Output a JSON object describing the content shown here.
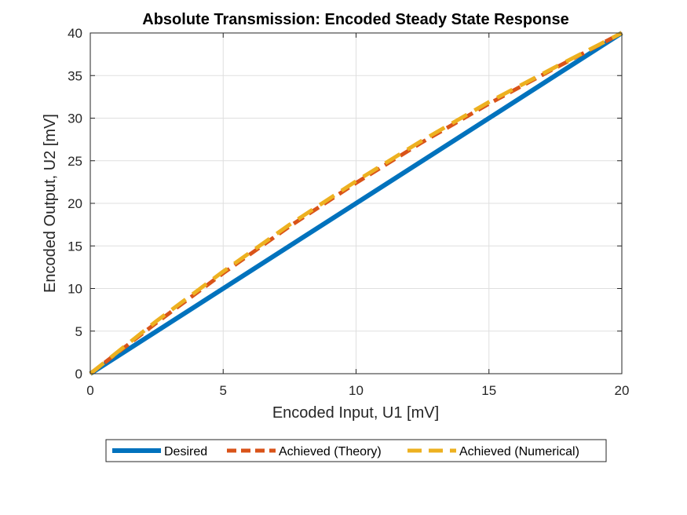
{
  "chart_data": {
    "type": "line",
    "title": "Absolute Transmission: Encoded Steady State Response",
    "xlabel": "Encoded Input, U1 [mV]",
    "ylabel": "Encoded Output, U2 [mV]",
    "xlim": [
      0,
      20
    ],
    "ylim": [
      0,
      40
    ],
    "xticks": [
      0,
      5,
      10,
      15,
      20
    ],
    "yticks": [
      0,
      5,
      10,
      15,
      20,
      25,
      30,
      35,
      40
    ],
    "grid": true,
    "legend_position": "bottom-outside",
    "series": [
      {
        "name": "Desired",
        "color": "#0072BD",
        "style": "solid",
        "x": [
          0,
          5,
          10,
          15,
          20
        ],
        "y": [
          0,
          10,
          20,
          30,
          40
        ]
      },
      {
        "name": "Achieved (Theory)",
        "color": "#D95319",
        "style": "dashed",
        "x": [
          0,
          2.5,
          5,
          7.5,
          10,
          12.5,
          15,
          17.5,
          20
        ],
        "y": [
          0,
          6.0,
          11.8,
          17.3,
          22.4,
          27.2,
          31.7,
          35.9,
          40
        ]
      },
      {
        "name": "Achieved (Numerical)",
        "color": "#EDB120",
        "style": "dashed",
        "x": [
          0,
          2.5,
          5,
          7.5,
          10,
          12.5,
          15,
          17.5,
          20
        ],
        "y": [
          0,
          6.2,
          12.0,
          17.5,
          22.6,
          27.4,
          31.9,
          36.0,
          40
        ]
      }
    ]
  }
}
